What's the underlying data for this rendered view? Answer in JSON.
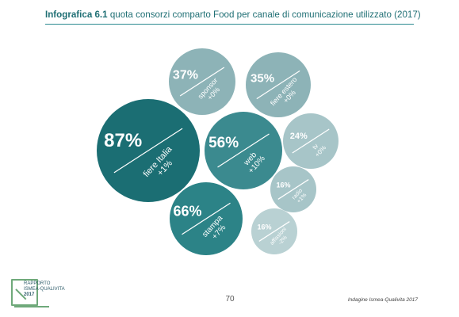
{
  "header": {
    "bold": "Infografica 6.1",
    "rest": " quota consorzi comparto Food per canale di comunicazione utilizzato (2017)"
  },
  "footer": {
    "page_number": "70",
    "source": "Indagine Ismea-Qualivita 2017"
  },
  "logo": {
    "line1": "RAPPORTO",
    "line2": "ISMEA-QUALIVITA",
    "line3": "2017"
  },
  "chart_data": {
    "type": "bubble",
    "title": "quota consorzi comparto Food per canale di comunicazione utilizzato (2017)",
    "series": [
      {
        "label": "fiere Italia",
        "value": 87,
        "value_text": "87%",
        "change": "+1%",
        "color": "#1b6e73"
      },
      {
        "label": "stampa",
        "value": 66,
        "value_text": "66%",
        "change": "+7%",
        "color": "#2c8387"
      },
      {
        "label": "web",
        "value": 56,
        "value_text": "56%",
        "change": "+10%",
        "color": "#3b8a8f"
      },
      {
        "label": "sponsor",
        "value": 37,
        "value_text": "37%",
        "change": "+0%",
        "color": "#8db3b7"
      },
      {
        "label": "fiere estero",
        "value": 35,
        "value_text": "35%",
        "change": "+0%",
        "color": "#8db3b7"
      },
      {
        "label": "tv",
        "value": 24,
        "value_text": "24%",
        "change": "+0%",
        "color": "#a7c5c8"
      },
      {
        "label": "radio",
        "value": 16,
        "value_text": "16%",
        "change": "+1%",
        "color": "#a7c5c8"
      },
      {
        "label": "affissioni",
        "value": 16,
        "value_text": "16%",
        "change": "-2%",
        "color": "#b9d1d3"
      }
    ]
  }
}
